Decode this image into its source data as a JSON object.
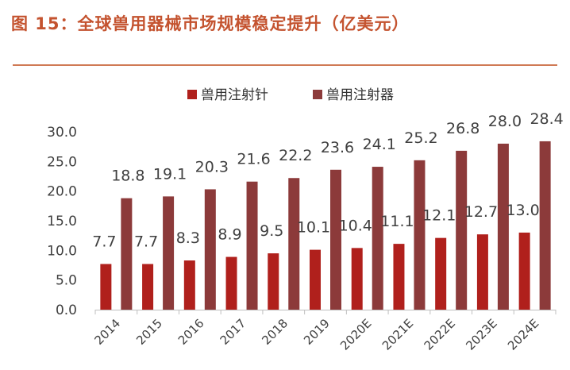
{
  "figure": {
    "title": "图 15：全球兽用器械市场规模稳定提升（亿美元）"
  },
  "colors": {
    "title": "#c4532f",
    "rule": "#d07a55",
    "series_1": "#b0201c",
    "series_2": "#8c3a3a"
  },
  "chart_data": {
    "type": "bar",
    "categories": [
      "2014",
      "2015",
      "2016",
      "2017",
      "2018",
      "2019",
      "2020E",
      "2021E",
      "2022E",
      "2023E",
      "2024E"
    ],
    "series": [
      {
        "name": "兽用注射针",
        "values": [
          7.7,
          7.7,
          8.3,
          8.9,
          9.5,
          10.1,
          10.4,
          11.1,
          12.1,
          12.7,
          13.0
        ]
      },
      {
        "name": "兽用注射器",
        "values": [
          18.8,
          19.1,
          20.3,
          21.6,
          22.2,
          23.6,
          24.1,
          25.2,
          26.8,
          28.0,
          28.4
        ]
      }
    ],
    "yticks": [
      "0.0",
      "5.0",
      "10.0",
      "15.0",
      "20.0",
      "25.0",
      "30.0"
    ],
    "ylim": [
      0,
      30
    ],
    "xlabel": "",
    "ylabel": "",
    "legend": "top-center",
    "grid": false,
    "data_labels": true
  }
}
